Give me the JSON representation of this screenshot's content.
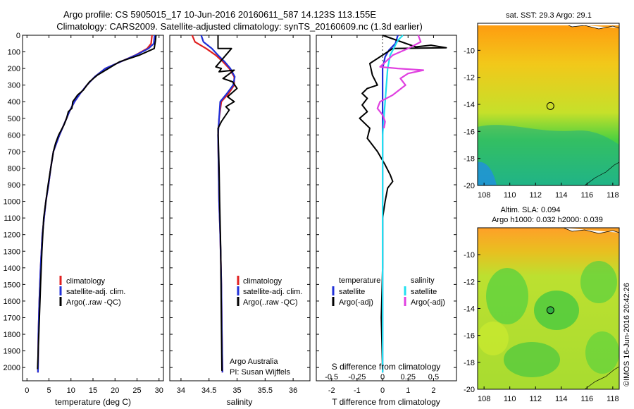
{
  "header": {
    "line1": "Argo profile: CS 5905015_17 10-Jun-2016 20160611_587 14.123S 113.155E",
    "line2": "Climatology: CARS2009. Satellite-adjusted climatology: synTS_20160609.nc (1.3d earlier)"
  },
  "footer": {
    "stamp": "©IMOS 16-Jun-2016 20:42:26"
  },
  "colors": {
    "red": "#e02020",
    "blue": "#2030d8",
    "black": "#000000",
    "cyan": "#20e0f0",
    "magenta": "#e040e0"
  },
  "chart_data": [
    {
      "id": "temperature",
      "type": "line",
      "xlabel": "temperature (deg C)",
      "ylabel": "",
      "xlim": [
        -1,
        31
      ],
      "ylim": [
        2080,
        0
      ],
      "xticks": [
        0,
        5,
        10,
        15,
        20,
        25,
        30
      ],
      "yticks": [
        0,
        100,
        200,
        300,
        400,
        500,
        600,
        700,
        800,
        900,
        1000,
        1100,
        1200,
        1300,
        1400,
        1500,
        1600,
        1700,
        1800,
        1900,
        2000
      ],
      "legend": [
        "climatology",
        "satellite-adj. clim.",
        "Argo(..raw -QC)"
      ],
      "series": [
        {
          "name": "climatology",
          "color": "#e02020",
          "x": [
            28.4,
            28.2,
            27.3,
            24.6,
            21.2,
            17.8,
            15.4,
            13.6,
            12.1,
            10.8,
            9.8,
            9.0,
            8.2,
            7.4,
            6.7,
            6.0,
            5.4,
            4.9,
            4.3,
            3.9,
            3.5,
            3.1,
            2.8,
            2.6,
            2.5
          ],
          "y": [
            0,
            50,
            80,
            120,
            160,
            200,
            250,
            300,
            350,
            400,
            450,
            500,
            550,
            600,
            650,
            700,
            800,
            900,
            1000,
            1100,
            1200,
            1400,
            1600,
            1800,
            2030
          ]
        },
        {
          "name": "satellite-adj. clim.",
          "color": "#2030d8",
          "x": [
            29.0,
            28.8,
            27.6,
            24.7,
            21.2,
            17.8,
            15.4,
            13.6,
            12.1,
            10.8,
            9.8,
            9.0,
            8.2,
            7.4,
            6.7,
            6.0,
            5.4,
            4.9,
            4.3,
            3.9,
            3.5,
            3.1,
            2.8,
            2.6,
            2.5
          ],
          "y": [
            0,
            50,
            80,
            120,
            160,
            200,
            250,
            300,
            350,
            400,
            450,
            500,
            550,
            600,
            650,
            700,
            800,
            900,
            1000,
            1100,
            1200,
            1400,
            1600,
            1800,
            2030
          ]
        },
        {
          "name": "Argo(..raw -QC)",
          "color": "#000000",
          "x": [
            29.3,
            29.2,
            28.9,
            25.5,
            21.0,
            18.5,
            16.0,
            14.2,
            12.8,
            11.5,
            10.4,
            10.2,
            9.4,
            9.0,
            8.4,
            7.2,
            6.5,
            6.0,
            5.4,
            4.8,
            4.3,
            3.8,
            3.4,
            3.1,
            2.7,
            2.4
          ],
          "y": [
            0,
            30,
            80,
            120,
            160,
            200,
            240,
            280,
            330,
            360,
            400,
            440,
            460,
            500,
            540,
            600,
            650,
            700,
            800,
            900,
            1000,
            1100,
            1300,
            1500,
            1800,
            2010
          ]
        }
      ]
    },
    {
      "id": "salinity",
      "type": "line",
      "xlabel": "salinity",
      "ylabel": "",
      "xlim": [
        33.8,
        36.3
      ],
      "ylim": [
        2080,
        0
      ],
      "xticks": [
        34,
        34.5,
        35,
        35.5,
        36
      ],
      "yticks": [
        0,
        100,
        200,
        300,
        400,
        500,
        600,
        700,
        800,
        900,
        1000,
        1100,
        1200,
        1300,
        1400,
        1500,
        1600,
        1700,
        1800,
        1900,
        2000
      ],
      "legend": [
        "climatology",
        "satellite-adj. clim.",
        "Argo(..raw -QC)"
      ],
      "annotations": [
        "Argo Australia",
        "PI: Susan Wijffels"
      ],
      "series": [
        {
          "name": "climatology",
          "color": "#e02020",
          "x": [
            34.2,
            34.25,
            34.45,
            34.62,
            34.75,
            34.86,
            34.95,
            34.95,
            34.85,
            34.72,
            34.68,
            34.66,
            34.67,
            34.68,
            34.7,
            34.72,
            34.73,
            34.74
          ],
          "y": [
            0,
            40,
            80,
            120,
            160,
            200,
            250,
            300,
            350,
            400,
            500,
            600,
            800,
            1000,
            1200,
            1500,
            1800,
            2030
          ]
        },
        {
          "name": "satellite-adj. clim.",
          "color": "#2030d8",
          "x": [
            34.36,
            34.4,
            34.55,
            34.66,
            34.78,
            34.88,
            34.96,
            34.93,
            34.82,
            34.7,
            34.68,
            34.66,
            34.67,
            34.68,
            34.7,
            34.72,
            34.73,
            34.74
          ],
          "y": [
            0,
            40,
            80,
            120,
            160,
            200,
            250,
            300,
            350,
            400,
            500,
            600,
            800,
            1000,
            1200,
            1500,
            1800,
            2030
          ]
        },
        {
          "name": "Argo(..raw -QC)",
          "color": "#000000",
          "x": [
            34.66,
            34.66,
            34.9,
            34.62,
            34.72,
            34.68,
            34.95,
            34.75,
            34.92,
            35.0,
            34.83,
            34.95,
            34.8,
            34.86,
            34.72,
            34.66,
            34.68,
            34.69,
            34.71,
            34.72,
            34.73
          ],
          "y": [
            0,
            80,
            80,
            190,
            200,
            220,
            210,
            260,
            280,
            320,
            370,
            400,
            430,
            450,
            520,
            560,
            800,
            1000,
            1300,
            1700,
            2020
          ]
        }
      ]
    },
    {
      "id": "differences",
      "type": "line",
      "xlabel": "T difference from climatology",
      "xlabel2": "S difference from climatology",
      "ylabel": "",
      "xlim": [
        -2.6,
        2.9
      ],
      "ylim": [
        2080,
        0
      ],
      "xticks": [
        -2,
        -1,
        0,
        1,
        2
      ],
      "xticks2": [
        "-0.5",
        "-0.25",
        "0",
        "0.25",
        "0.5"
      ],
      "yticks": [
        0,
        100,
        200,
        300,
        400,
        500,
        600,
        700,
        800,
        900,
        1000,
        1100,
        1200,
        1300,
        1400,
        1500,
        1600,
        1700,
        1800,
        1900,
        2000
      ],
      "legend_t_title": "temperature",
      "legend_s_title": "salinity",
      "legend_t": [
        "satellite",
        "Argo(-adj)"
      ],
      "legend_s": [
        "satellite",
        "Argo(-adj)"
      ],
      "series": [
        {
          "name": "satellite",
          "color": "#2030d8",
          "x": [
            0.6,
            0.5,
            0.25,
            0.1,
            0.0,
            0.0,
            0.0,
            0.0,
            0.0,
            0.0
          ],
          "y": [
            0,
            50,
            90,
            130,
            200,
            400,
            800,
            1200,
            1600,
            2030
          ]
        },
        {
          "name": "Argo(-adj)",
          "color": "#000000",
          "x": [
            0.0,
            1.3,
            1.9,
            2.5,
            0.4,
            -0.5,
            -0.4,
            -0.2,
            -0.6,
            -0.8,
            -0.6,
            -0.8,
            -0.6,
            -0.9,
            -0.5,
            -0.6,
            -0.2,
            0.1,
            0.3,
            0.4,
            0.2,
            0.1,
            0.0,
            0.0,
            -0.05,
            0.0
          ],
          "y": [
            0,
            70,
            60,
            75,
            80,
            170,
            240,
            300,
            320,
            350,
            380,
            420,
            460,
            500,
            560,
            620,
            700,
            780,
            840,
            880,
            920,
            1000,
            1100,
            1400,
            1700,
            2020
          ]
        },
        {
          "name": "satellite",
          "color": "#20e0f0",
          "x": [
            0.8,
            0.6,
            0.5,
            0.3,
            0.2,
            0.15,
            0.1,
            0.05,
            0.0,
            0.0,
            0.0,
            0.0,
            0.0
          ],
          "y": [
            0,
            30,
            60,
            120,
            200,
            300,
            400,
            500,
            600,
            800,
            1200,
            1600,
            2030
          ]
        },
        {
          "name": "Argo(-adj)",
          "color": "#e040e0",
          "x": [
            1.4,
            1.5,
            1.0,
            0.4,
            -0.1,
            0.6,
            1.6,
            1.0,
            0.7,
            0.9,
            0.4,
            -0.1,
            -0.2,
            0.0,
            0.1,
            0.05
          ],
          "y": [
            0,
            40,
            80,
            120,
            190,
            200,
            210,
            230,
            260,
            300,
            360,
            400,
            440,
            480,
            520,
            560
          ]
        }
      ]
    }
  ],
  "maps": [
    {
      "id": "sst-map",
      "title": "sat. SST: 29.3 Argo: 29.1",
      "title2": "",
      "xticks": [
        108,
        110,
        112,
        114,
        116,
        118
      ],
      "yticks": [
        -10,
        -12,
        -14,
        -16,
        -18,
        -20
      ],
      "xlim": [
        107.5,
        118.5
      ],
      "ylim": [
        -20,
        -8
      ],
      "marker": {
        "lon": 113.155,
        "lat": -14.123
      }
    },
    {
      "id": "sla-map",
      "title": "Altim. SLA: 0.094",
      "title2": "Argo h1000: 0.032 h2000: 0.039",
      "xticks": [
        108,
        110,
        112,
        114,
        116,
        118
      ],
      "yticks": [
        -10,
        -12,
        -14,
        -16,
        -18,
        -20
      ],
      "xlim": [
        107.5,
        118.5
      ],
      "ylim": [
        -20,
        -8
      ],
      "marker": {
        "lon": 113.155,
        "lat": -14.123
      }
    }
  ]
}
